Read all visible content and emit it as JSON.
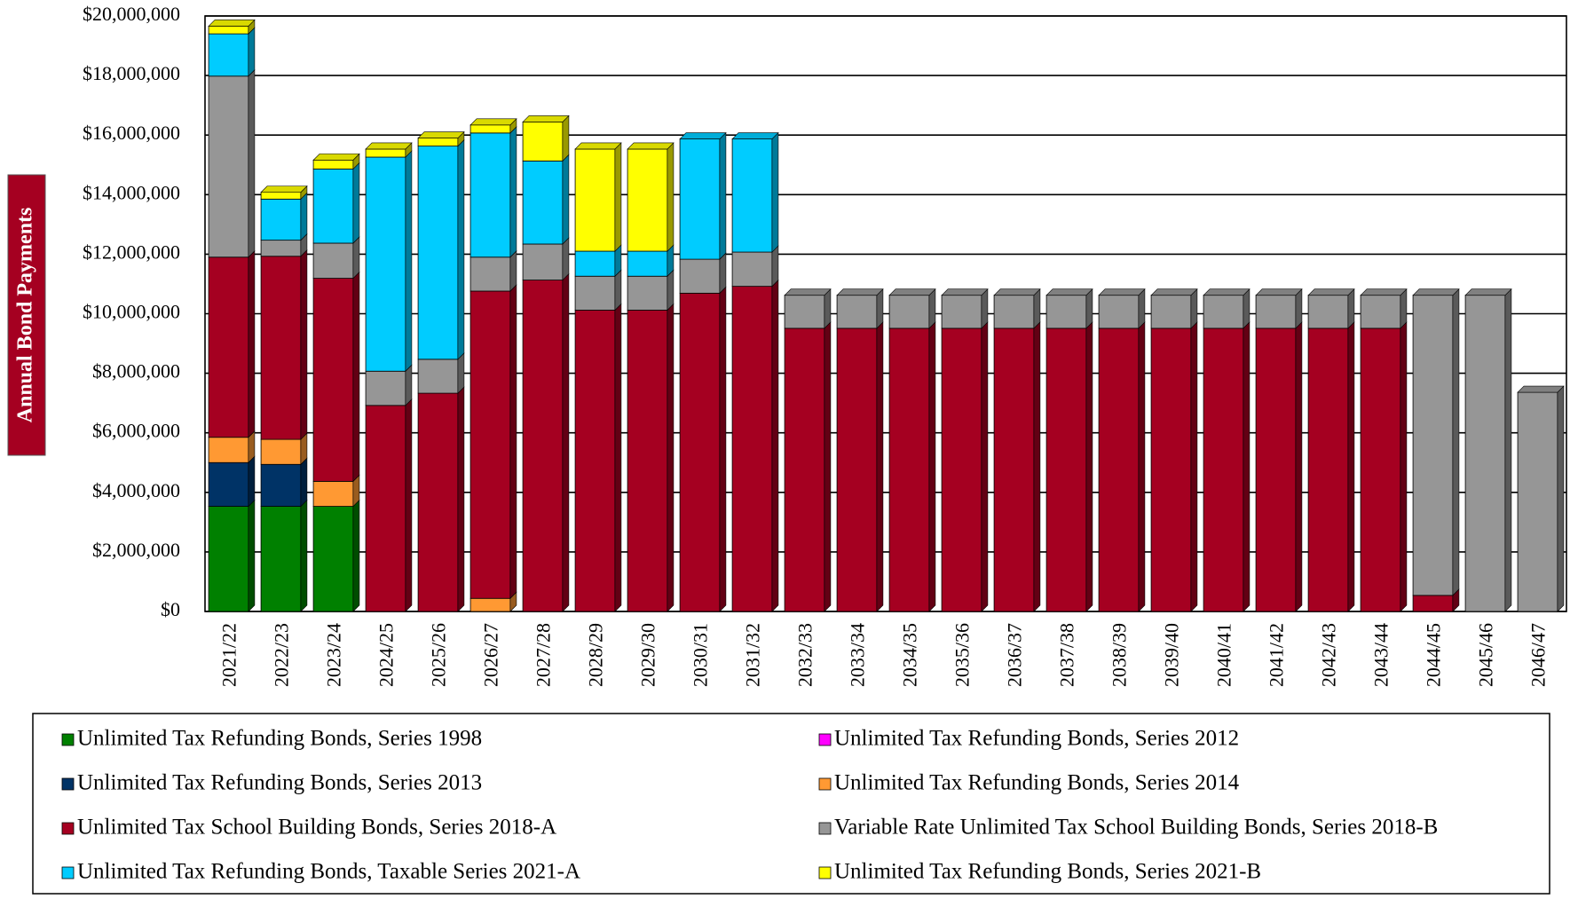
{
  "chart_data": {
    "type": "stacked_bar",
    "y_axis_label": "Annual Bond Payments",
    "categories": [
      "2021/22",
      "2022/23",
      "2023/24",
      "2024/25",
      "2025/26",
      "2026/27",
      "2027/28",
      "2028/29",
      "2029/30",
      "2030/31",
      "2031/32",
      "2032/33",
      "2033/34",
      "2034/35",
      "2035/36",
      "2036/37",
      "2037/38",
      "2038/39",
      "2039/40",
      "2040/41",
      "2041/42",
      "2042/43",
      "2043/44",
      "2044/45",
      "2045/46",
      "2046/47"
    ],
    "series": [
      {
        "name": "Unlimited Tax Refunding Bonds, Series 1998",
        "color": "#008000",
        "values": [
          3530000,
          3530000,
          3530000,
          0,
          0,
          0,
          0,
          0,
          0,
          0,
          0,
          0,
          0,
          0,
          0,
          0,
          0,
          0,
          0,
          0,
          0,
          0,
          0,
          0,
          0,
          0
        ]
      },
      {
        "name": "Unlimited Tax Refunding Bonds, Series 2012",
        "color": "#ff00ff",
        "values": [
          0,
          0,
          0,
          0,
          0,
          0,
          0,
          0,
          0,
          0,
          0,
          0,
          0,
          0,
          0,
          0,
          0,
          0,
          0,
          0,
          0,
          0,
          0,
          0,
          0,
          0
        ]
      },
      {
        "name": "Unlimited Tax Refunding Bonds, Series 2013",
        "color": "#003366",
        "values": [
          1470000,
          1410000,
          0,
          0,
          0,
          0,
          0,
          0,
          0,
          0,
          0,
          0,
          0,
          0,
          0,
          0,
          0,
          0,
          0,
          0,
          0,
          0,
          0,
          0,
          0,
          0
        ]
      },
      {
        "name": "Unlimited Tax Refunding Bonds, Series 2014",
        "color": "#ff9933",
        "values": [
          850000,
          840000,
          840000,
          0,
          0,
          440000,
          0,
          0,
          0,
          0,
          0,
          0,
          0,
          0,
          0,
          0,
          0,
          0,
          0,
          0,
          0,
          0,
          0,
          0,
          0,
          0
        ]
      },
      {
        "name": "Unlimited Tax School Building Bonds, Series 2018-A",
        "color": "#a50021",
        "values": [
          6050000,
          6150000,
          6820000,
          6920000,
          7330000,
          10320000,
          11130000,
          10120000,
          10120000,
          10690000,
          10920000,
          9510000,
          9510000,
          9510000,
          9510000,
          9510000,
          9510000,
          9510000,
          9510000,
          9510000,
          9510000,
          9510000,
          9510000,
          540000,
          0,
          0
        ]
      },
      {
        "name": "Variable Rate Unlimited Tax School Building Bonds, Series 2018-B",
        "color": "#969696",
        "values": [
          6080000,
          540000,
          1180000,
          1150000,
          1140000,
          1140000,
          1210000,
          1140000,
          1140000,
          1140000,
          1150000,
          1110000,
          1110000,
          1110000,
          1110000,
          1110000,
          1110000,
          1110000,
          1110000,
          1110000,
          1110000,
          1110000,
          1110000,
          10080000,
          10620000,
          7360000
        ]
      },
      {
        "name": "Unlimited Tax Refunding Bonds, Taxable Series 2021-A",
        "color": "#00ccff",
        "values": [
          1420000,
          1380000,
          2490000,
          7190000,
          7160000,
          4170000,
          2790000,
          840000,
          840000,
          4040000,
          3800000,
          0,
          0,
          0,
          0,
          0,
          0,
          0,
          0,
          0,
          0,
          0,
          0,
          0,
          0,
          0
        ]
      },
      {
        "name": "Unlimited Tax Refunding Bonds, Series 2021-B",
        "color": "#ffff00",
        "values": [
          260000,
          230000,
          300000,
          270000,
          270000,
          270000,
          1310000,
          3430000,
          3430000,
          0,
          0,
          0,
          0,
          0,
          0,
          0,
          0,
          0,
          0,
          0,
          0,
          0,
          0,
          0,
          0,
          0
        ]
      }
    ],
    "ylim": [
      0,
      20000000
    ],
    "yticks": [
      {
        "value": 0,
        "label": "$0"
      },
      {
        "value": 2000000,
        "label": "$2,000,000"
      },
      {
        "value": 4000000,
        "label": "$4,000,000"
      },
      {
        "value": 6000000,
        "label": "$6,000,000"
      },
      {
        "value": 8000000,
        "label": "$8,000,000"
      },
      {
        "value": 10000000,
        "label": "$10,000,000"
      },
      {
        "value": 12000000,
        "label": "$12,000,000"
      },
      {
        "value": 14000000,
        "label": "$14,000,000"
      },
      {
        "value": 16000000,
        "label": "$16,000,000"
      },
      {
        "value": 18000000,
        "label": "$18,000,000"
      },
      {
        "value": 20000000,
        "label": "$20,000,000"
      }
    ],
    "grid": true
  }
}
